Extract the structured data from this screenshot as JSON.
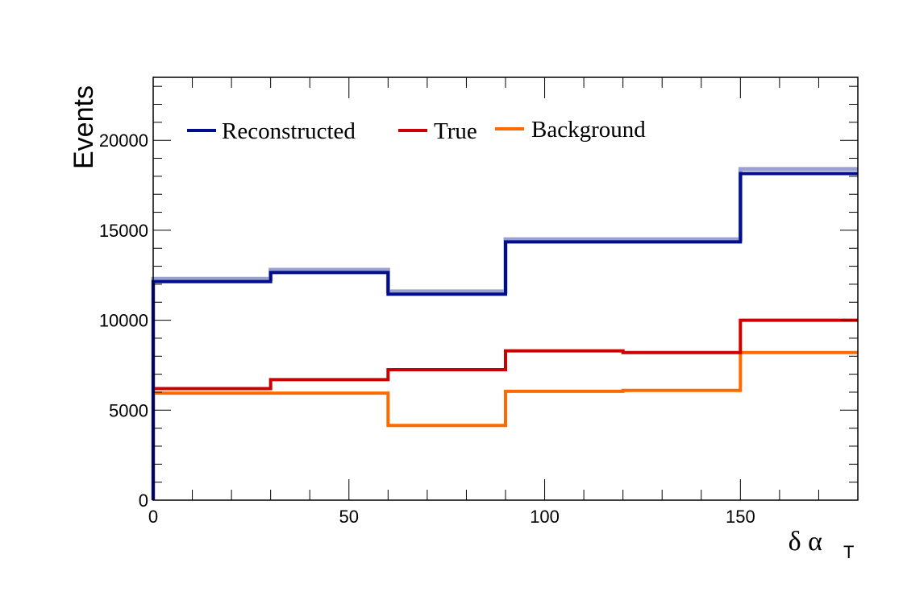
{
  "chart_data": {
    "type": "line",
    "drawstyle": "histogram-steps",
    "xlabel": "δ α",
    "xlabel_subscript": "T",
    "ylabel": "Events",
    "xlim": [
      0,
      180
    ],
    "ylim": [
      0,
      23500
    ],
    "xticks": [
      0,
      50,
      100,
      150
    ],
    "yticks": [
      0,
      5000,
      10000,
      15000,
      20000
    ],
    "x_bin_edges": [
      0,
      30,
      60,
      90,
      120,
      150,
      180
    ],
    "grid": false,
    "legend": {
      "placement": "top-left",
      "orientation": "horizontal"
    },
    "series": [
      {
        "name": "Reconstructed",
        "color": "#000e8c",
        "values": [
          12150,
          12650,
          11450,
          14350,
          14350,
          18150
        ],
        "shadow_color": "#9aa0cf",
        "shadow_values": [
          12300,
          12800,
          11600,
          14500,
          14500,
          18400
        ]
      },
      {
        "name": "True",
        "color": "#cc0000",
        "values": [
          6200,
          6700,
          7250,
          8300,
          8200,
          10000
        ]
      },
      {
        "name": "Background",
        "color": "#ff6a00",
        "values": [
          5950,
          5950,
          4150,
          6050,
          6100,
          8200
        ]
      }
    ]
  }
}
